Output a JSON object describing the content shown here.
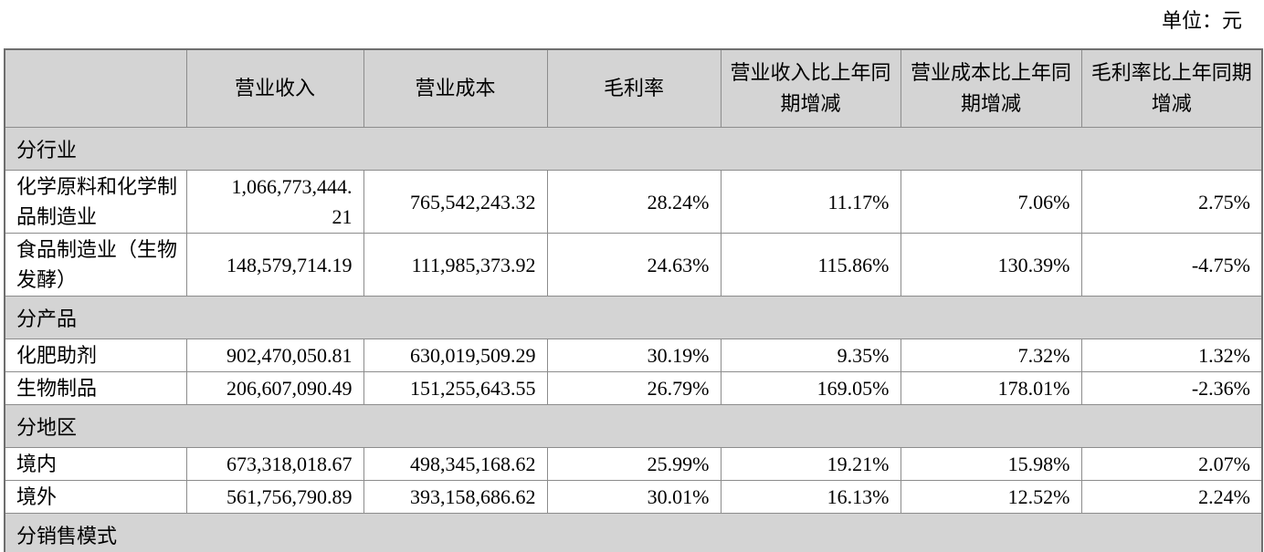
{
  "meta": {
    "unit_label": "单位：元"
  },
  "colors": {
    "section_bg": "#d4d4d4",
    "inner_border": "#8c8c8c",
    "outer_border": "#6e6e6e",
    "text": "#000000",
    "page_bg": "#ffffff"
  },
  "table": {
    "columns": [
      {
        "key": "label",
        "label": ""
      },
      {
        "key": "revenue",
        "label": "营业收入"
      },
      {
        "key": "cost",
        "label": "营业成本"
      },
      {
        "key": "margin",
        "label": "毛利率"
      },
      {
        "key": "revenue_yoy",
        "label": "营业收入比上年同期增减"
      },
      {
        "key": "cost_yoy",
        "label": "营业成本比上年同期增减"
      },
      {
        "key": "margin_yoy",
        "label": "毛利率比上年同期增减"
      }
    ],
    "sections": [
      {
        "title": "分行业",
        "rows": [
          {
            "label": "化学原料和化学制品制造业",
            "revenue": "1,066,773,444.21",
            "cost": "765,542,243.32",
            "margin": "28.24%",
            "revenue_yoy": "11.17%",
            "cost_yoy": "7.06%",
            "margin_yoy": "2.75%"
          },
          {
            "label": "食品制造业（生物发酵）",
            "revenue": "148,579,714.19",
            "cost": "111,985,373.92",
            "margin": "24.63%",
            "revenue_yoy": "115.86%",
            "cost_yoy": "130.39%",
            "margin_yoy": "-4.75%"
          }
        ]
      },
      {
        "title": "分产品",
        "rows": [
          {
            "label": "化肥助剂",
            "revenue": "902,470,050.81",
            "cost": "630,019,509.29",
            "margin": "30.19%",
            "revenue_yoy": "9.35%",
            "cost_yoy": "7.32%",
            "margin_yoy": "1.32%"
          },
          {
            "label": "生物制品",
            "revenue": "206,607,090.49",
            "cost": "151,255,643.55",
            "margin": "26.79%",
            "revenue_yoy": "169.05%",
            "cost_yoy": "178.01%",
            "margin_yoy": "-2.36%"
          }
        ]
      },
      {
        "title": "分地区",
        "rows": [
          {
            "label": "境内",
            "revenue": "673,318,018.67",
            "cost": "498,345,168.62",
            "margin": "25.99%",
            "revenue_yoy": "19.21%",
            "cost_yoy": "15.98%",
            "margin_yoy": "2.07%"
          },
          {
            "label": "境外",
            "revenue": "561,756,790.89",
            "cost": "393,158,686.62",
            "margin": "30.01%",
            "revenue_yoy": "16.13%",
            "cost_yoy": "12.52%",
            "margin_yoy": "2.24%"
          }
        ]
      },
      {
        "title": "分销售模式",
        "rows": []
      }
    ]
  }
}
